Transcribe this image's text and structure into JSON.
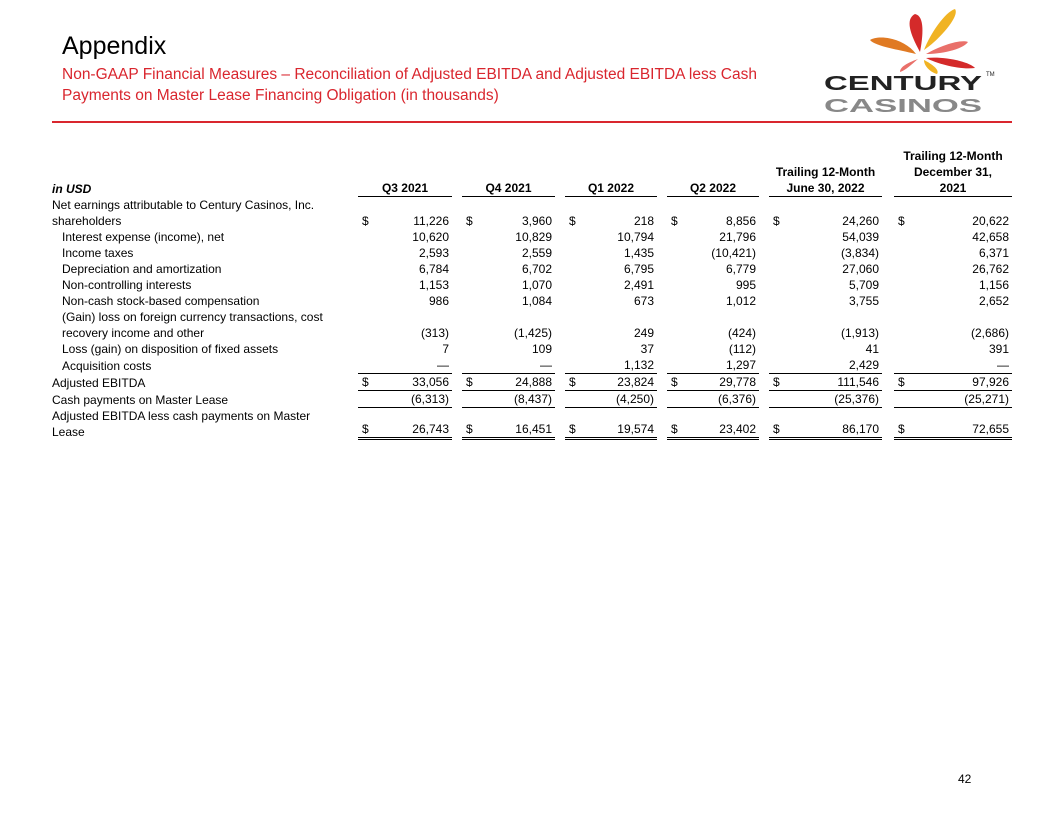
{
  "header": {
    "title": "Appendix",
    "subtitle": "Non-GAAP Financial Measures – Reconciliation of Adjusted EBITDA and Adjusted EBITDA less Cash Payments on Master Lease Financing Obligation (in thousands)",
    "accent_color": "#d9262e"
  },
  "logo": {
    "text_top": "CENTURY",
    "text_bottom": "CASINOS",
    "tm": "TM"
  },
  "table": {
    "unit_label": "in USD",
    "columns": [
      "Q3 2021",
      "Q4 2021",
      "Q1 2022",
      "Q2 2022",
      "Trailing 12-Month June 30, 2022",
      "Trailing 12-Month December 31, 2021"
    ],
    "rows": [
      {
        "label": "Net earnings attributable to Century Casinos, Inc. shareholders",
        "dollar": true,
        "values": [
          "11,226",
          "3,960",
          "218",
          "8,856",
          "24,260",
          "20,622"
        ]
      },
      {
        "label": "Interest expense (income), net",
        "values": [
          "10,620",
          "10,829",
          "10,794",
          "21,796",
          "54,039",
          "42,658"
        ]
      },
      {
        "label": "Income taxes",
        "values": [
          "2,593",
          "2,559",
          "1,435",
          "(10,421)",
          "(3,834)",
          "6,371"
        ]
      },
      {
        "label": "Depreciation and amortization",
        "values": [
          "6,784",
          "6,702",
          "6,795",
          "6,779",
          "27,060",
          "26,762"
        ]
      },
      {
        "label": "Non-controlling interests",
        "values": [
          "1,153",
          "1,070",
          "2,491",
          "995",
          "5,709",
          "1,156"
        ]
      },
      {
        "label": "Non-cash stock-based compensation",
        "values": [
          "986",
          "1,084",
          "673",
          "1,012",
          "3,755",
          "2,652"
        ]
      },
      {
        "label": "(Gain) loss on foreign currency transactions, cost recovery income and other",
        "values": [
          "(313)",
          "(1,425)",
          "249",
          "(424)",
          "(1,913)",
          "(2,686)"
        ]
      },
      {
        "label": "Loss (gain) on disposition of fixed assets",
        "values": [
          "7",
          "109",
          "37",
          "(112)",
          "41",
          "391"
        ]
      },
      {
        "label": "Acquisition costs",
        "values": [
          "—",
          "—",
          "1,132",
          "1,297",
          "2,429",
          "—"
        ]
      },
      {
        "label": "Adjusted EBITDA",
        "dollar": true,
        "values": [
          "33,056",
          "24,888",
          "23,824",
          "29,778",
          "111,546",
          "97,926"
        ]
      },
      {
        "label": "Cash payments on Master Lease",
        "values": [
          "(6,313)",
          "(8,437)",
          "(4,250)",
          "(6,376)",
          "(25,376)",
          "(25,271)"
        ]
      },
      {
        "label": "Adjusted EBITDA less cash payments on Master Lease",
        "dollar": true,
        "values": [
          "26,743",
          "16,451",
          "19,574",
          "23,402",
          "86,170",
          "72,655"
        ]
      }
    ],
    "currency_symbol": "$"
  },
  "page_number": "42"
}
